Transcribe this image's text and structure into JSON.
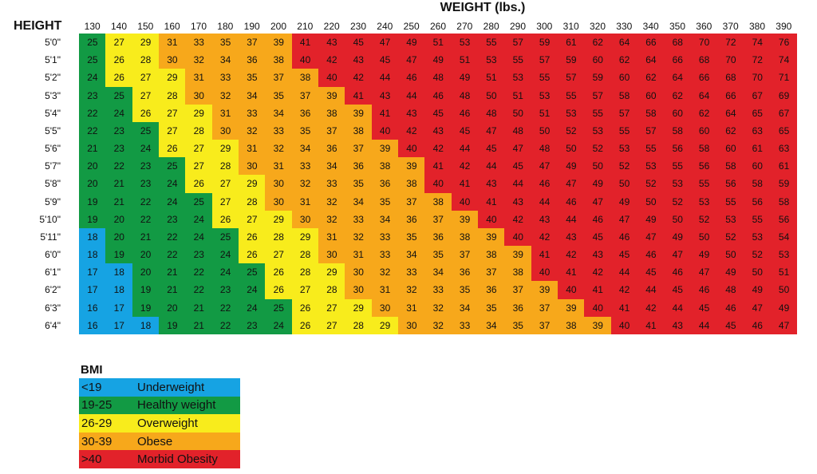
{
  "colors": {
    "underweight": "#16a3e3",
    "healthy": "#129a44",
    "overweight": "#f8ec1c",
    "obese": "#f7a81b",
    "morbid": "#e2222a"
  },
  "chart_data": {
    "type": "table",
    "title": "WEIGHT (lbs.)",
    "row_header": "HEIGHT",
    "weights": [
      130,
      140,
      150,
      160,
      170,
      180,
      190,
      200,
      210,
      220,
      230,
      240,
      250,
      260,
      270,
      280,
      290,
      300,
      310,
      320,
      330,
      340,
      350,
      360,
      370,
      380,
      390
    ],
    "heights": [
      "5'0\"",
      "5'1\"",
      "5'2\"",
      "5'3\"",
      "5'4\"",
      "5'5\"",
      "5'6\"",
      "5'7\"",
      "5'8\"",
      "5'9\"",
      "5'10\"",
      "5'11\"",
      "6'0\"",
      "6'1\"",
      "6'2\"",
      "6'3\"",
      "6'4\""
    ],
    "bmi": [
      [
        25,
        27,
        29,
        31,
        33,
        35,
        37,
        39,
        41,
        43,
        45,
        47,
        49,
        51,
        53,
        55,
        57,
        59,
        61,
        62,
        64,
        66,
        68,
        70,
        72,
        74,
        76
      ],
      [
        25,
        26,
        28,
        30,
        32,
        34,
        36,
        38,
        40,
        42,
        43,
        45,
        47,
        49,
        51,
        53,
        55,
        57,
        59,
        60,
        62,
        64,
        66,
        68,
        70,
        72,
        74
      ],
      [
        24,
        26,
        27,
        29,
        31,
        33,
        35,
        37,
        38,
        40,
        42,
        44,
        46,
        48,
        49,
        51,
        53,
        55,
        57,
        59,
        60,
        62,
        64,
        66,
        68,
        70,
        71
      ],
      [
        23,
        25,
        27,
        28,
        30,
        32,
        34,
        35,
        37,
        39,
        41,
        43,
        44,
        46,
        48,
        50,
        51,
        53,
        55,
        57,
        58,
        60,
        62,
        64,
        66,
        67,
        69
      ],
      [
        22,
        24,
        26,
        27,
        29,
        31,
        33,
        34,
        36,
        38,
        39,
        41,
        43,
        45,
        46,
        48,
        50,
        51,
        53,
        55,
        57,
        58,
        60,
        62,
        64,
        65,
        67
      ],
      [
        22,
        23,
        25,
        27,
        28,
        30,
        32,
        33,
        35,
        37,
        38,
        40,
        42,
        43,
        45,
        47,
        48,
        50,
        52,
        53,
        55,
        57,
        58,
        60,
        62,
        63,
        65
      ],
      [
        21,
        23,
        24,
        26,
        27,
        29,
        31,
        32,
        34,
        36,
        37,
        39,
        40,
        42,
        44,
        45,
        47,
        48,
        50,
        52,
        53,
        55,
        56,
        58,
        60,
        61,
        63
      ],
      [
        20,
        22,
        23,
        25,
        27,
        28,
        30,
        31,
        33,
        34,
        36,
        38,
        39,
        41,
        42,
        44,
        45,
        47,
        49,
        50,
        52,
        53,
        55,
        56,
        58,
        60,
        61
      ],
      [
        20,
        21,
        23,
        24,
        26,
        27,
        29,
        30,
        32,
        33,
        35,
        36,
        38,
        40,
        41,
        43,
        44,
        46,
        47,
        49,
        50,
        52,
        53,
        55,
        56,
        58,
        59
      ],
      [
        19,
        21,
        22,
        24,
        25,
        27,
        28,
        30,
        31,
        32,
        34,
        35,
        37,
        38,
        40,
        41,
        43,
        44,
        46,
        47,
        49,
        50,
        52,
        53,
        55,
        56,
        58
      ],
      [
        19,
        20,
        22,
        23,
        24,
        26,
        27,
        29,
        30,
        32,
        33,
        34,
        36,
        37,
        39,
        40,
        42,
        43,
        44,
        46,
        47,
        49,
        50,
        52,
        53,
        55,
        56
      ],
      [
        18,
        20,
        21,
        22,
        24,
        25,
        26,
        28,
        29,
        31,
        32,
        33,
        35,
        36,
        38,
        39,
        40,
        42,
        43,
        45,
        46,
        47,
        49,
        50,
        52,
        53,
        54
      ],
      [
        18,
        19,
        20,
        22,
        23,
        24,
        26,
        27,
        28,
        30,
        31,
        33,
        34,
        35,
        37,
        38,
        39,
        41,
        42,
        43,
        45,
        46,
        47,
        49,
        50,
        52,
        53
      ],
      [
        17,
        18,
        20,
        21,
        22,
        24,
        25,
        26,
        28,
        29,
        30,
        32,
        33,
        34,
        36,
        37,
        38,
        40,
        41,
        42,
        44,
        45,
        46,
        47,
        49,
        50,
        51
      ],
      [
        17,
        18,
        19,
        21,
        22,
        23,
        24,
        26,
        27,
        28,
        30,
        31,
        32,
        33,
        35,
        36,
        37,
        39,
        40,
        41,
        42,
        44,
        45,
        46,
        48,
        49,
        50
      ],
      [
        16,
        17,
        19,
        20,
        21,
        22,
        24,
        25,
        26,
        27,
        29,
        30,
        31,
        32,
        34,
        35,
        36,
        37,
        39,
        40,
        41,
        42,
        44,
        45,
        46,
        47,
        49
      ],
      [
        16,
        17,
        18,
        19,
        21,
        22,
        23,
        24,
        26,
        27,
        28,
        29,
        30,
        32,
        33,
        34,
        35,
        37,
        38,
        39,
        40,
        41,
        43,
        44,
        45,
        46,
        47
      ]
    ],
    "legend_title": "BMI",
    "legend": [
      {
        "range": "<19",
        "label": "Underweight",
        "color": "#16a3e3"
      },
      {
        "range": "19-25",
        "label": "Healthy weight",
        "color": "#129a44"
      },
      {
        "range": "26-29",
        "label": "Overweight",
        "color": "#f8ec1c"
      },
      {
        "range": "30-39",
        "label": "Obese",
        "color": "#f7a81b"
      },
      {
        "range": ">40",
        "label": "Morbid Obesity",
        "color": "#e2222a"
      }
    ]
  }
}
